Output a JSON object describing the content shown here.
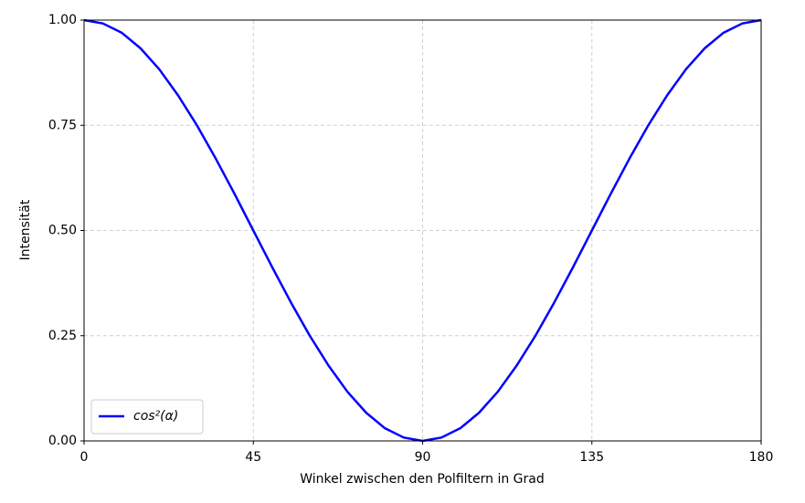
{
  "chart_data": {
    "type": "line",
    "x_label": "Winkel zwischen den Polfiltern in Grad",
    "y_label": "Intensität",
    "x": [
      0,
      5,
      10,
      15,
      20,
      25,
      30,
      35,
      40,
      45,
      50,
      55,
      60,
      65,
      70,
      75,
      80,
      85,
      90,
      95,
      100,
      105,
      110,
      115,
      120,
      125,
      130,
      135,
      140,
      145,
      150,
      155,
      160,
      165,
      170,
      175,
      180
    ],
    "series": [
      {
        "name": "cos²(α)",
        "color": "#0000ff",
        "values": [
          1,
          0.992,
          0.97,
          0.933,
          0.883,
          0.821,
          0.75,
          0.671,
          0.587,
          0.5,
          0.413,
          0.329,
          0.25,
          0.179,
          0.117,
          0.067,
          0.03,
          0.008,
          0,
          0.008,
          0.03,
          0.067,
          0.117,
          0.179,
          0.25,
          0.329,
          0.413,
          0.5,
          0.587,
          0.671,
          0.75,
          0.821,
          0.883,
          0.933,
          0.97,
          0.992,
          1
        ]
      }
    ],
    "xlim": [
      0,
      180
    ],
    "xticks": [
      0,
      45,
      90,
      135,
      180
    ],
    "ylim": [
      0,
      1
    ],
    "yticks": [
      {
        "value": 0,
        "label": "0.00"
      },
      0.25,
      {
        "value": 0.5,
        "label": "0.50"
      },
      0.75,
      {
        "value": 1,
        "label": "1.00"
      }
    ],
    "grid": true,
    "legend": "lower left"
  }
}
